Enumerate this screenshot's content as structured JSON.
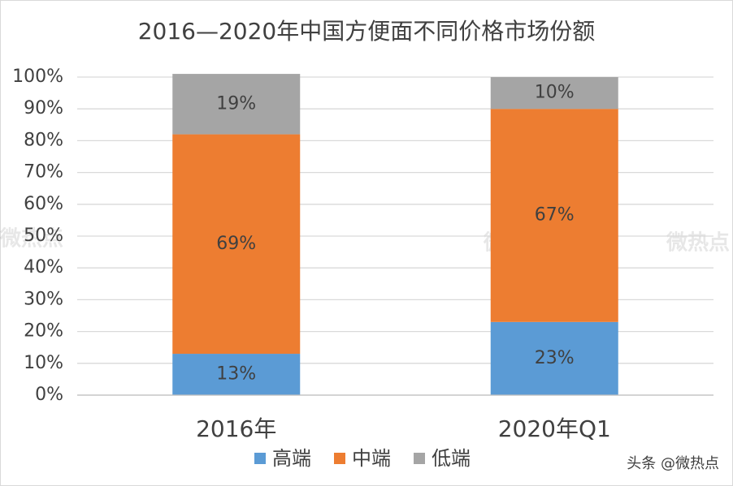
{
  "chart_data": {
    "type": "stacked_bar",
    "title": "2016—2020年中国方便面不同价格市场份额",
    "categories": [
      "2016年",
      "2020年Q1"
    ],
    "series": [
      {
        "name": "高端",
        "color": "#5b9bd5",
        "values": [
          13,
          23
        ],
        "value_labels": [
          "13%",
          "23%"
        ]
      },
      {
        "name": "中端",
        "color": "#ed7d31",
        "values": [
          69,
          67
        ],
        "value_labels": [
          "69%",
          "67%"
        ]
      },
      {
        "name": "低端",
        "color": "#a5a5a5",
        "values": [
          19,
          10
        ],
        "value_labels": [
          "19%",
          "10%"
        ]
      }
    ],
    "ylim": [
      0,
      100
    ],
    "yticks": [
      {
        "value": 0,
        "label": "0%"
      },
      {
        "value": 10,
        "label": "10%"
      },
      {
        "value": 20,
        "label": "20%"
      },
      {
        "value": 30,
        "label": "30%"
      },
      {
        "value": 40,
        "label": "40%"
      },
      {
        "value": 50,
        "label": "50%"
      },
      {
        "value": 60,
        "label": "60%"
      },
      {
        "value": 70,
        "label": "70%"
      },
      {
        "value": 80,
        "label": "80%"
      },
      {
        "value": 90,
        "label": "90%"
      },
      {
        "value": 100,
        "label": "100%"
      }
    ],
    "grid": true,
    "legend": "bottom",
    "watermark": "微热点",
    "credit": "头条 @微热点"
  }
}
